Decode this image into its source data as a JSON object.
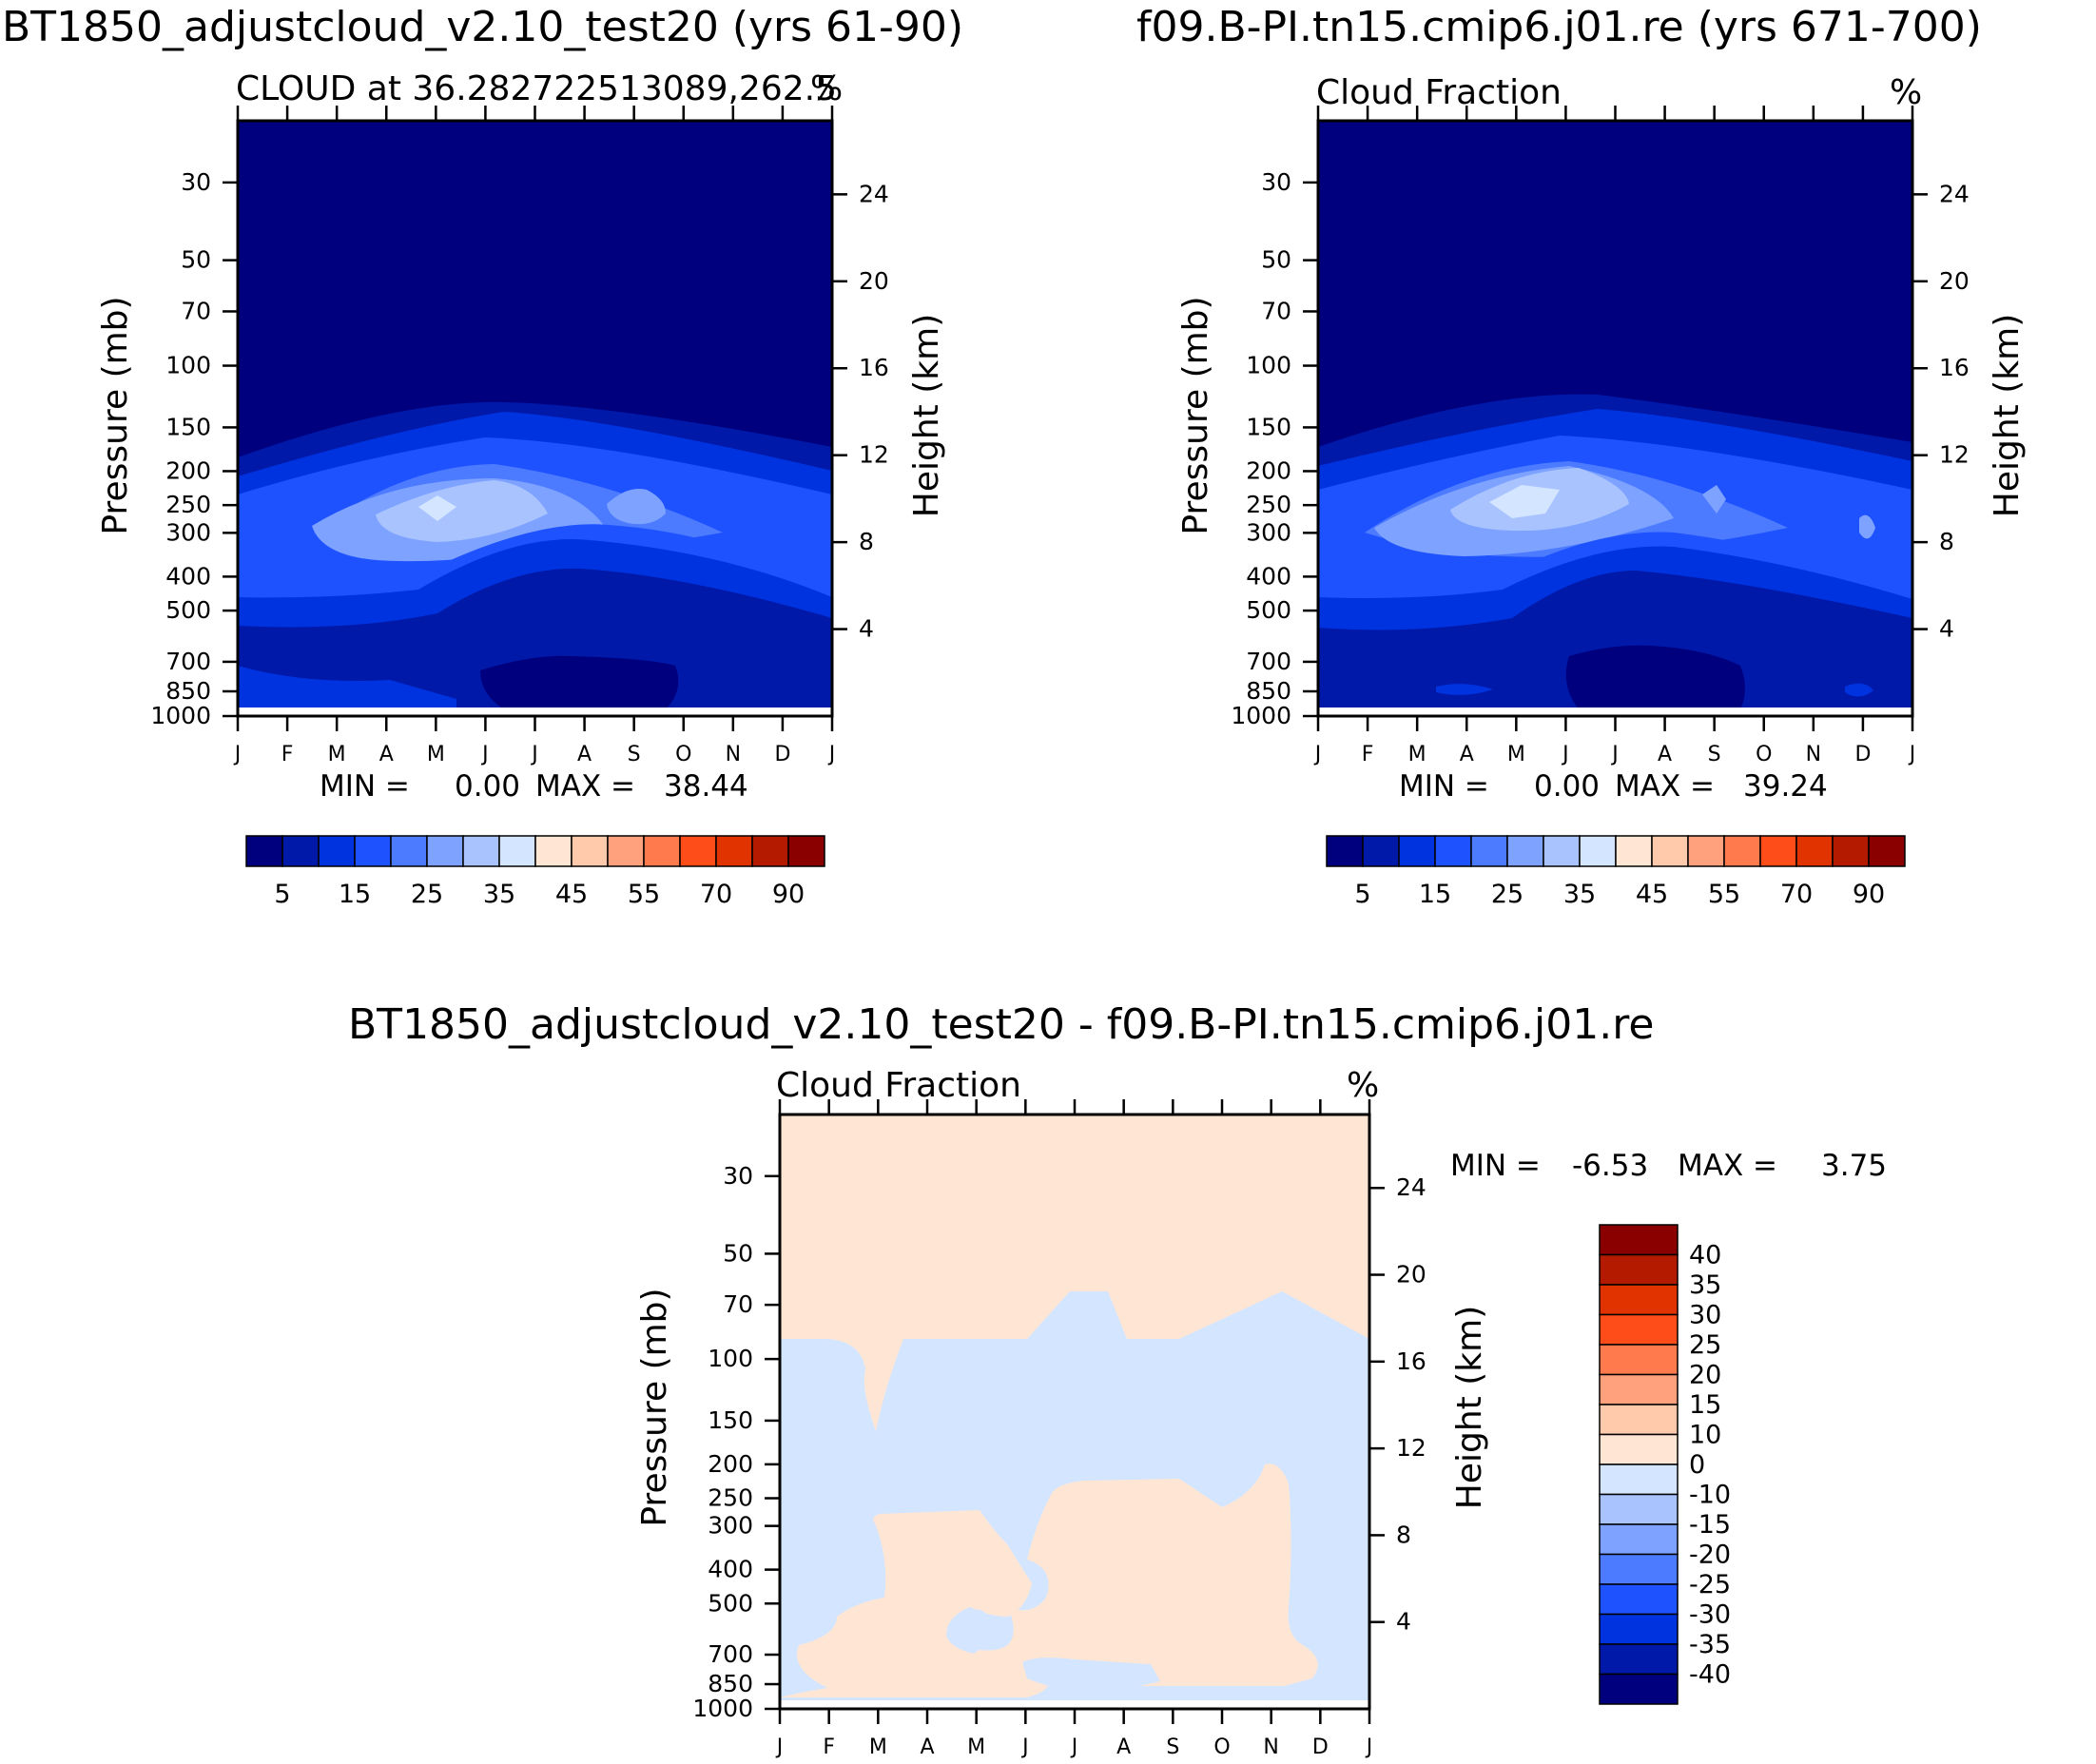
{
  "colors": {
    "scale": [
      "#00007f",
      "#0019a8",
      "#0033e0",
      "#1e52ff",
      "#4d7bff",
      "#7da2ff",
      "#a9c3ff",
      "#d4e5ff",
      "#ffe6d4",
      "#ffc9ab",
      "#ffa17d",
      "#ff7a4d",
      "#ff4d1a",
      "#e03300",
      "#b31a00",
      "#8a0000"
    ]
  },
  "header": {
    "left_title": "BT1850_adjustcloud_v2.10_test20 (yrs 61-90)",
    "right_title": "f09.B-PI.tn15.cmip6.j01.re (yrs 671-700)",
    "diff_title": "BT1850_adjustcloud_v2.10_test20 - f09.B-PI.tn15.cmip6.j01.re"
  },
  "axes": {
    "pressure_label": "Pressure (mb)",
    "height_label": "Height (km)",
    "pressure_ticks": [
      "30",
      "50",
      "70",
      "100",
      "150",
      "200",
      "250",
      "300",
      "400",
      "500",
      "700",
      "850",
      "1000"
    ],
    "height_ticks": [
      "24",
      "20",
      "16",
      "12",
      "8",
      "4"
    ],
    "month_ticks": [
      "J",
      "F",
      "M",
      "A",
      "M",
      "J",
      "J",
      "A",
      "S",
      "O",
      "N",
      "D",
      "J"
    ]
  },
  "panels": {
    "left": {
      "subtitle": "CLOUD at 36.282722513089,262.5",
      "units": "%",
      "min_label": "MIN =",
      "min_value": "0.00",
      "max_label": "MAX =",
      "max_value": "38.44"
    },
    "right": {
      "subtitle": "Cloud Fraction",
      "units": "%",
      "min_label": "MIN =",
      "min_value": "0.00",
      "max_label": "MAX =",
      "max_value": "39.24"
    },
    "diff": {
      "subtitle": "Cloud Fraction",
      "units": "%",
      "min_label": "MIN =",
      "min_value": "-6.53",
      "max_label": "MAX =",
      "max_value": "3.75"
    }
  },
  "colorbar_top": {
    "labels": [
      "5",
      "15",
      "25",
      "35",
      "45",
      "55",
      "70",
      "90"
    ]
  },
  "colorbar_diff": {
    "labels": [
      "40",
      "35",
      "30",
      "25",
      "20",
      "15",
      "10",
      "0",
      "-10",
      "-15",
      "-20",
      "-25",
      "-30",
      "-35",
      "-40"
    ]
  },
  "chart_data": [
    {
      "type": "heatmap",
      "title": "BT1850_adjustcloud_v2.10_test20 (yrs 61-90)",
      "subtitle": "CLOUD at 36.282722513089,262.5",
      "xlabel": "",
      "ylabel": "Pressure (mb)",
      "ylabel_right": "Height (km)",
      "units": "%",
      "x": [
        "J",
        "F",
        "M",
        "A",
        "M",
        "J",
        "J",
        "A",
        "S",
        "O",
        "N",
        "D",
        "J"
      ],
      "y_pressure_mb": [
        30,
        50,
        70,
        100,
        150,
        200,
        250,
        300,
        400,
        500,
        700,
        850,
        1000
      ],
      "ylim": [
        1000,
        20
      ],
      "min": 0.0,
      "max": 38.44,
      "levels": [
        5,
        10,
        15,
        20,
        25,
        30,
        35,
        40,
        45,
        50,
        55,
        60,
        70,
        80,
        90
      ]
    },
    {
      "type": "heatmap",
      "title": "f09.B-PI.tn15.cmip6.j01.re (yrs 671-700)",
      "subtitle": "Cloud Fraction",
      "xlabel": "",
      "ylabel": "Pressure (mb)",
      "ylabel_right": "Height (km)",
      "units": "%",
      "x": [
        "J",
        "F",
        "M",
        "A",
        "M",
        "J",
        "J",
        "A",
        "S",
        "O",
        "N",
        "D",
        "J"
      ],
      "y_pressure_mb": [
        30,
        50,
        70,
        100,
        150,
        200,
        250,
        300,
        400,
        500,
        700,
        850,
        1000
      ],
      "ylim": [
        1000,
        20
      ],
      "min": 0.0,
      "max": 39.24,
      "levels": [
        5,
        10,
        15,
        20,
        25,
        30,
        35,
        40,
        45,
        50,
        55,
        60,
        70,
        80,
        90
      ]
    },
    {
      "type": "heatmap",
      "title": "BT1850_adjustcloud_v2.10_test20 - f09.B-PI.tn15.cmip6.j01.re",
      "subtitle": "Cloud Fraction",
      "xlabel": "",
      "ylabel": "Pressure (mb)",
      "ylabel_right": "Height (km)",
      "units": "%",
      "x": [
        "J",
        "F",
        "M",
        "A",
        "M",
        "J",
        "J",
        "A",
        "S",
        "O",
        "N",
        "D",
        "J"
      ],
      "y_pressure_mb": [
        30,
        50,
        70,
        100,
        150,
        200,
        250,
        300,
        400,
        500,
        700,
        850,
        1000
      ],
      "ylim": [
        1000,
        20
      ],
      "min": -6.53,
      "max": 3.75,
      "levels": [
        -40,
        -35,
        -30,
        -25,
        -20,
        -15,
        -10,
        0,
        10,
        15,
        20,
        25,
        30,
        35,
        40
      ]
    }
  ]
}
